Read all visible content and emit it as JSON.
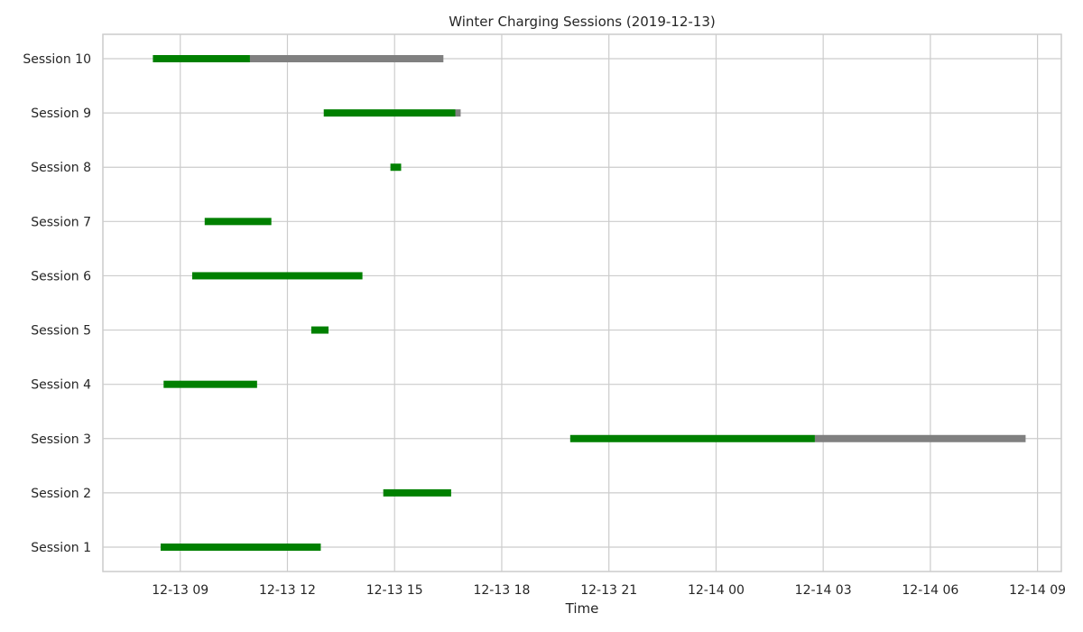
{
  "chart_data": {
    "type": "gantt",
    "title": "Winter Charging Sessions (2019-12-13)",
    "xlabel": "Time",
    "ylabel": "",
    "grid": true,
    "xlim": [
      "2019-12-13T06:50",
      "2019-12-14T09:40"
    ],
    "x_ticks": [
      {
        "value": "2019-12-13T09:00",
        "label": "12-13 09"
      },
      {
        "value": "2019-12-13T12:00",
        "label": "12-13 12"
      },
      {
        "value": "2019-12-13T15:00",
        "label": "12-13 15"
      },
      {
        "value": "2019-12-13T18:00",
        "label": "12-13 18"
      },
      {
        "value": "2019-12-13T21:00",
        "label": "12-13 21"
      },
      {
        "value": "2019-12-14T00:00",
        "label": "12-14 00"
      },
      {
        "value": "2019-12-14T03:00",
        "label": "12-14 03"
      },
      {
        "value": "2019-12-14T06:00",
        "label": "12-14 06"
      },
      {
        "value": "2019-12-14T09:00",
        "label": "12-14 09"
      }
    ],
    "colors": {
      "charging": "#008000",
      "idle": "#808080"
    },
    "sessions": [
      {
        "label": "Session 1",
        "start": "2019-12-13T08:27",
        "charge_end": "2019-12-13T12:56",
        "end": "2019-12-13T12:56"
      },
      {
        "label": "Session 2",
        "start": "2019-12-13T14:41",
        "charge_end": "2019-12-13T16:35",
        "end": "2019-12-13T16:35"
      },
      {
        "label": "Session 3",
        "start": "2019-12-13T19:55",
        "charge_end": "2019-12-14T02:46",
        "end": "2019-12-14T08:40"
      },
      {
        "label": "Session 4",
        "start": "2019-12-13T08:32",
        "charge_end": "2019-12-13T11:09",
        "end": "2019-12-13T11:09"
      },
      {
        "label": "Session 5",
        "start": "2019-12-13T12:40",
        "charge_end": "2019-12-13T13:09",
        "end": "2019-12-13T13:09"
      },
      {
        "label": "Session 6",
        "start": "2019-12-13T09:20",
        "charge_end": "2019-12-13T14:06",
        "end": "2019-12-13T14:06"
      },
      {
        "label": "Session 7",
        "start": "2019-12-13T09:41",
        "charge_end": "2019-12-13T11:33",
        "end": "2019-12-13T11:33"
      },
      {
        "label": "Session 8",
        "start": "2019-12-13T14:53",
        "charge_end": "2019-12-13T15:11",
        "end": "2019-12-13T15:11"
      },
      {
        "label": "Session 9",
        "start": "2019-12-13T13:01",
        "charge_end": "2019-12-13T16:42",
        "end": "2019-12-13T16:51"
      },
      {
        "label": "Session 10",
        "start": "2019-12-13T08:14",
        "charge_end": "2019-12-13T10:57",
        "end": "2019-12-13T16:22"
      }
    ]
  }
}
